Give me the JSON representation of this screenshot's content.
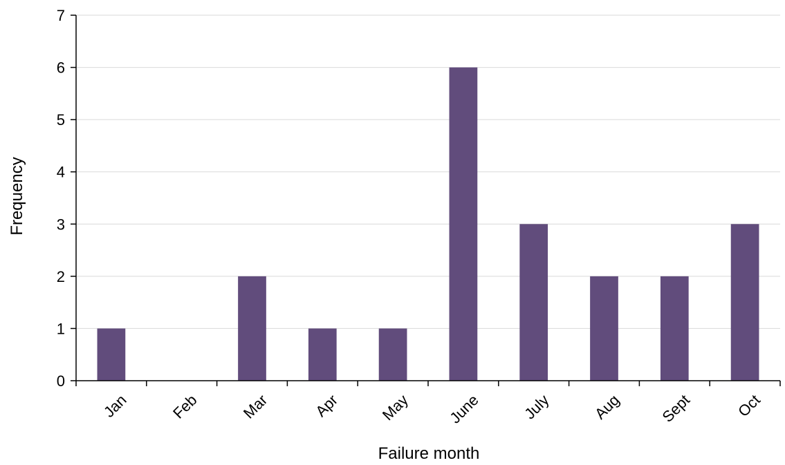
{
  "chart_data": {
    "type": "bar",
    "title": "",
    "xlabel": "Failure month",
    "ylabel": "Frequency",
    "categories": [
      "Jan",
      "Feb",
      "Mar",
      "Apr",
      "May",
      "June",
      "July",
      "Aug",
      "Sept",
      "Oct"
    ],
    "values": [
      1,
      0,
      2,
      1,
      1,
      6,
      3,
      2,
      2,
      3
    ],
    "ylim": [
      0,
      7
    ],
    "yticks": [
      0,
      1,
      2,
      3,
      4,
      5,
      6,
      7
    ],
    "grid": true,
    "legend": "none",
    "bar_color": "#614c7c",
    "grid_color": "#d9d9d9",
    "axis_color": "#000000"
  }
}
